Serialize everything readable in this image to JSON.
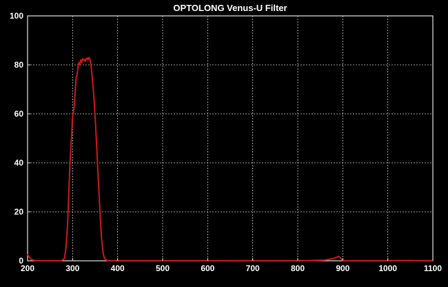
{
  "chart_data": {
    "type": "line",
    "title": "OPTOLONG Venus-U Filter",
    "xlabel": "",
    "ylabel": "",
    "xlim": [
      200,
      1100
    ],
    "ylim": [
      0,
      100
    ],
    "x_ticks": [
      200,
      300,
      400,
      500,
      600,
      700,
      800,
      900,
      1000,
      1100
    ],
    "y_ticks": [
      0,
      20,
      40,
      60,
      80,
      100
    ],
    "grid": true,
    "colors": {
      "background": "#000000",
      "line": "#d01818",
      "grid": "#cfcfcf",
      "text": "#ffffff"
    },
    "series": [
      {
        "x": [
          200,
          202,
          205,
          208,
          212,
          218,
          225,
          240,
          260,
          275,
          282,
          285,
          288,
          290,
          292,
          294,
          296,
          298,
          300,
          302,
          304,
          306,
          308,
          310,
          312,
          314,
          316,
          318,
          320,
          322,
          324,
          326,
          328,
          330,
          332,
          334,
          336,
          338,
          340,
          342,
          344,
          346,
          348,
          350,
          352,
          354,
          356,
          358,
          360,
          362,
          364,
          366,
          368,
          370,
          372,
          374,
          376,
          378,
          380,
          383,
          386,
          390,
          395,
          400,
          420,
          450,
          500,
          550,
          600,
          650,
          700,
          750,
          800,
          830,
          850,
          860,
          870,
          875,
          880,
          885,
          888,
          890,
          892,
          894,
          896,
          898,
          900,
          905,
          920,
          950,
          980,
          1000,
          1020,
          1050,
          1080,
          1100
        ],
        "y": [
          2.5,
          2.0,
          1.2,
          0.6,
          0.3,
          0.1,
          0,
          0,
          0,
          0,
          1,
          5,
          12,
          20,
          30,
          39,
          46,
          52,
          59,
          61,
          64,
          70,
          75,
          76,
          79,
          81,
          80,
          82,
          81,
          82.5,
          82,
          82.3,
          81.5,
          82.5,
          82.8,
          82,
          83,
          82.5,
          81,
          78,
          74,
          70,
          65,
          59,
          52,
          45,
          37,
          30,
          23,
          16,
          10,
          6,
          3,
          1.5,
          0.8,
          0.4,
          0.2,
          0.1,
          0,
          0,
          0,
          0,
          0,
          0,
          0,
          0,
          0,
          0,
          0,
          0,
          0,
          0,
          0,
          0.1,
          0.2,
          0.3,
          0.6,
          0.8,
          1.0,
          1.3,
          1.6,
          1.8,
          1.7,
          1.4,
          0.9,
          0.4,
          0.1,
          0,
          0,
          0,
          0,
          0,
          0.1,
          0.1,
          0,
          0
        ]
      }
    ]
  }
}
